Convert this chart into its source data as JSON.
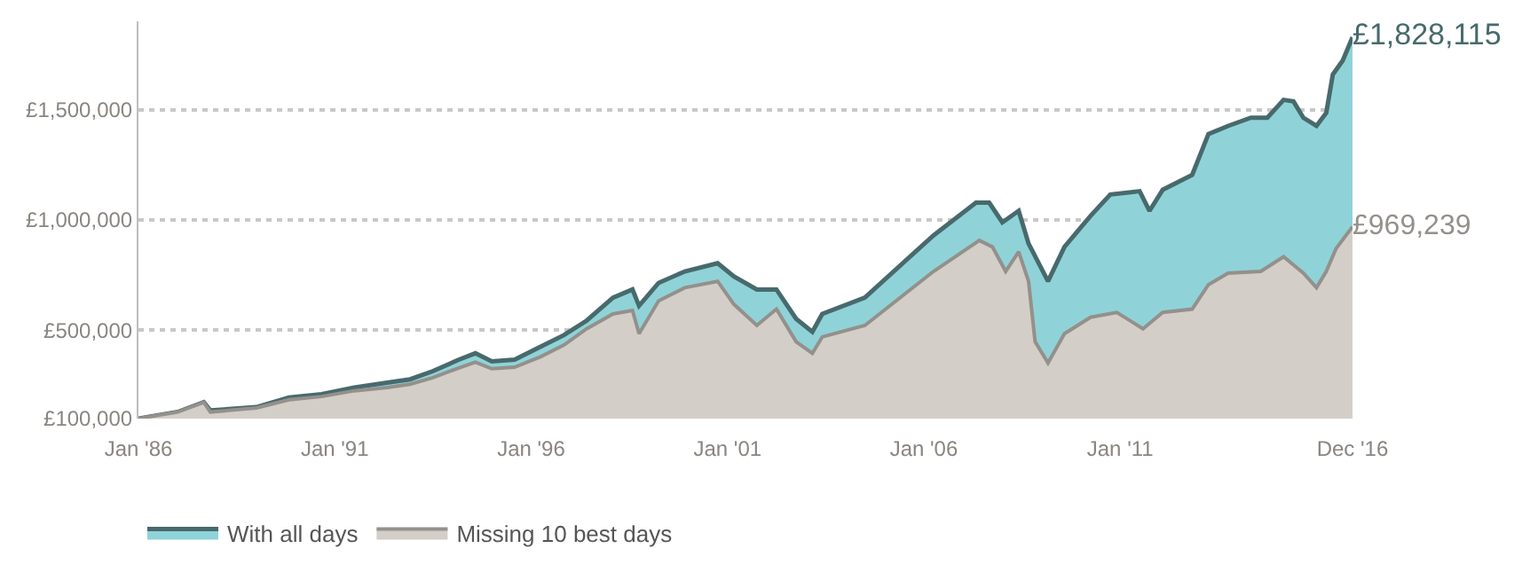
{
  "chart_data": {
    "type": "area",
    "xlim": [
      "1986-01",
      "2016-12"
    ],
    "xticks": [
      {
        "value": "1986-01",
        "label": "Jan '86"
      },
      {
        "value": "1991-01",
        "label": "Jan '91"
      },
      {
        "value": "1996-01",
        "label": "Jan '96"
      },
      {
        "value": "2001-01",
        "label": "Jan '01"
      },
      {
        "value": "2006-01",
        "label": "Jan '06"
      },
      {
        "value": "2011-01",
        "label": "Jan '11"
      },
      {
        "value": "2016-12",
        "label": "Dec '16"
      }
    ],
    "ylim": [
      100000,
      1900000
    ],
    "yticks": [
      {
        "value": 100000,
        "label": "£100,000"
      },
      {
        "value": 500000,
        "label": "£500,000"
      },
      {
        "value": 1000000,
        "label": "£1,000,000"
      },
      {
        "value": 1500000,
        "label": "£1,500,000"
      }
    ],
    "grid": "y",
    "legend": "bottom left",
    "line_style": "solid",
    "marker": "none",
    "series": [
      {
        "name": "With all days",
        "color": "#8fd3d8",
        "x": [
          "1986-01",
          "1987-01",
          "1987-09",
          "1987-11",
          "1989-01",
          "1989-11",
          "1990-09",
          "1991-07",
          "1992-05",
          "1992-12",
          "1993-07",
          "1994-03",
          "1994-08",
          "1995-01",
          "1995-08",
          "1996-04",
          "1996-11",
          "1997-06",
          "1998-02",
          "1998-08",
          "1998-10",
          "1999-04",
          "1999-12",
          "2000-10",
          "2001-03",
          "2001-10",
          "2002-04",
          "2002-10",
          "2003-03",
          "2003-06",
          "2004-07",
          "2006-04",
          "2007-05",
          "2007-09",
          "2008-01",
          "2008-06",
          "2008-09",
          "2009-03",
          "2009-08",
          "2010-04",
          "2010-10",
          "2011-07",
          "2011-10",
          "2012-02",
          "2012-11",
          "2013-04",
          "2013-10",
          "2014-05",
          "2014-10",
          "2015-03",
          "2015-06",
          "2015-09",
          "2016-01",
          "2016-04",
          "2016-06",
          "2016-09",
          "2016-12"
        ],
        "values": [
          100000,
          130000,
          174000,
          137000,
          152000,
          196000,
          211000,
          241000,
          263000,
          278000,
          315000,
          367000,
          396000,
          359000,
          367000,
          426000,
          478000,
          544000,
          648000,
          685000,
          611000,
          715000,
          767000,
          804000,
          744000,
          685000,
          685000,
          552000,
          493000,
          574000,
          648000,
          930000,
          1078000,
          1078000,
          989000,
          1041000,
          893000,
          722000,
          878000,
          1019000,
          1115000,
          1130000,
          1041000,
          1137000,
          1204000,
          1389000,
          1426000,
          1463000,
          1463000,
          1544000,
          1537000,
          1463000,
          1426000,
          1485000,
          1659000,
          1722000,
          1828115
        ],
        "value_labels": [
          null,
          null,
          null,
          null,
          null,
          null,
          null,
          null,
          null,
          null,
          null,
          null,
          null,
          null,
          null,
          null,
          null,
          null,
          null,
          null,
          null,
          null,
          null,
          null,
          null,
          null,
          null,
          null,
          null,
          null,
          null,
          null,
          null,
          null,
          null,
          null,
          null,
          null,
          null,
          null,
          null,
          null,
          null,
          null,
          null,
          null,
          null,
          null,
          null,
          null,
          null,
          null,
          null,
          null,
          null,
          null,
          "£1,828,115"
        ]
      },
      {
        "name": "Missing 10 best days",
        "color": "#d3cec8",
        "x": [
          "1986-01",
          "1987-01",
          "1987-09",
          "1987-11",
          "1989-01",
          "1989-11",
          "1990-09",
          "1991-07",
          "1992-05",
          "1992-12",
          "1993-07",
          "1994-03",
          "1994-08",
          "1995-01",
          "1995-08",
          "1996-04",
          "1996-11",
          "1997-06",
          "1998-02",
          "1998-08",
          "1998-10",
          "1999-04",
          "1999-12",
          "2000-10",
          "2001-03",
          "2001-10",
          "2002-04",
          "2002-10",
          "2003-03",
          "2003-06",
          "2004-07",
          "2006-04",
          "2007-06",
          "2007-10",
          "2008-02",
          "2008-06",
          "2008-09",
          "2008-11",
          "2009-03",
          "2009-08",
          "2010-04",
          "2010-12",
          "2011-08",
          "2012-02",
          "2012-11",
          "2013-04",
          "2013-10",
          "2014-08",
          "2015-03",
          "2015-09",
          "2016-01",
          "2016-04",
          "2016-07",
          "2016-12"
        ],
        "values": [
          100000,
          130000,
          174000,
          130000,
          148000,
          185000,
          200000,
          226000,
          241000,
          256000,
          285000,
          330000,
          356000,
          326000,
          333000,
          381000,
          433000,
          507000,
          574000,
          590000,
          485000,
          633000,
          693000,
          722000,
          618000,
          522000,
          596000,
          448000,
          396000,
          470000,
          522000,
          767000,
          907000,
          878000,
          767000,
          856000,
          722000,
          448000,
          352000,
          485000,
          559000,
          581000,
          507000,
          581000,
          596000,
          707000,
          759000,
          767000,
          833000,
          759000,
          693000,
          767000,
          870000,
          969239
        ],
        "value_labels": [
          null,
          null,
          null,
          null,
          null,
          null,
          null,
          null,
          null,
          null,
          null,
          null,
          null,
          null,
          null,
          null,
          null,
          null,
          null,
          null,
          null,
          null,
          null,
          null,
          null,
          null,
          null,
          null,
          null,
          null,
          null,
          null,
          null,
          null,
          null,
          null,
          null,
          null,
          null,
          null,
          null,
          null,
          null,
          null,
          null,
          null,
          null,
          null,
          null,
          null,
          null,
          null,
          null,
          "£969,239"
        ]
      }
    ]
  }
}
